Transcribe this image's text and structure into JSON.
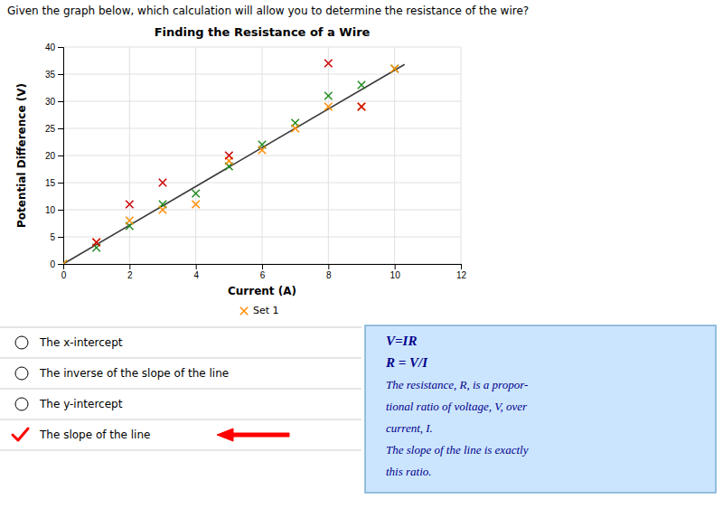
{
  "chart_data": {
    "type": "scatter",
    "title": "Finding the Resistance of a Wire",
    "question": "Given the graph below, which calculation will allow you to determine the resistance of the wire?",
    "xlabel": "Current (A)",
    "ylabel": "Potential Difference (V)",
    "xlim": [
      0,
      12
    ],
    "ylim": [
      0,
      40
    ],
    "xticks": [
      0,
      2,
      4,
      6,
      8,
      10,
      12
    ],
    "yticks": [
      0,
      5,
      10,
      15,
      20,
      25,
      30,
      35,
      40
    ],
    "grid": true,
    "series": [
      {
        "type": "line",
        "color": "#3a3a3a",
        "line_style": "solid",
        "x": [
          0,
          10.3
        ],
        "values": [
          0,
          36.8
        ]
      },
      {
        "type": "scatter",
        "marker": "x",
        "color": "#228B22",
        "x": [
          0,
          1,
          2,
          3,
          4,
          5,
          6,
          7,
          8,
          9,
          10
        ],
        "values": [
          0,
          3,
          7,
          11,
          13,
          18,
          22,
          26,
          31,
          33,
          36
        ]
      },
      {
        "type": "scatter",
        "marker": "x",
        "name": "Set 1",
        "color": "#FF8C00",
        "x": [
          0,
          1,
          2,
          3,
          4,
          5,
          6,
          7,
          8,
          9,
          10
        ],
        "values": [
          0,
          4,
          8,
          10,
          11,
          19,
          21,
          25,
          29,
          29,
          36
        ]
      },
      {
        "type": "scatter",
        "marker": "x",
        "color": "#CC0000",
        "x": [
          1,
          2,
          3,
          5,
          8,
          9
        ],
        "values": [
          4,
          11,
          15,
          20,
          37,
          29
        ]
      }
    ],
    "options": [
      {
        "label": "The x-intercept",
        "correct": false
      },
      {
        "label": "The inverse of the slope of the line",
        "correct": false
      },
      {
        "label": "The y-intercept",
        "correct": false
      },
      {
        "label": "The slope of the line",
        "correct": true
      }
    ],
    "annotations": [
      "V=IR",
      "R = V/I",
      "The resistance, R, is a propor-",
      "tional ratio of voltage, V, over",
      "current, I.",
      "The slope of the line is exactly",
      "this ratio."
    ]
  }
}
